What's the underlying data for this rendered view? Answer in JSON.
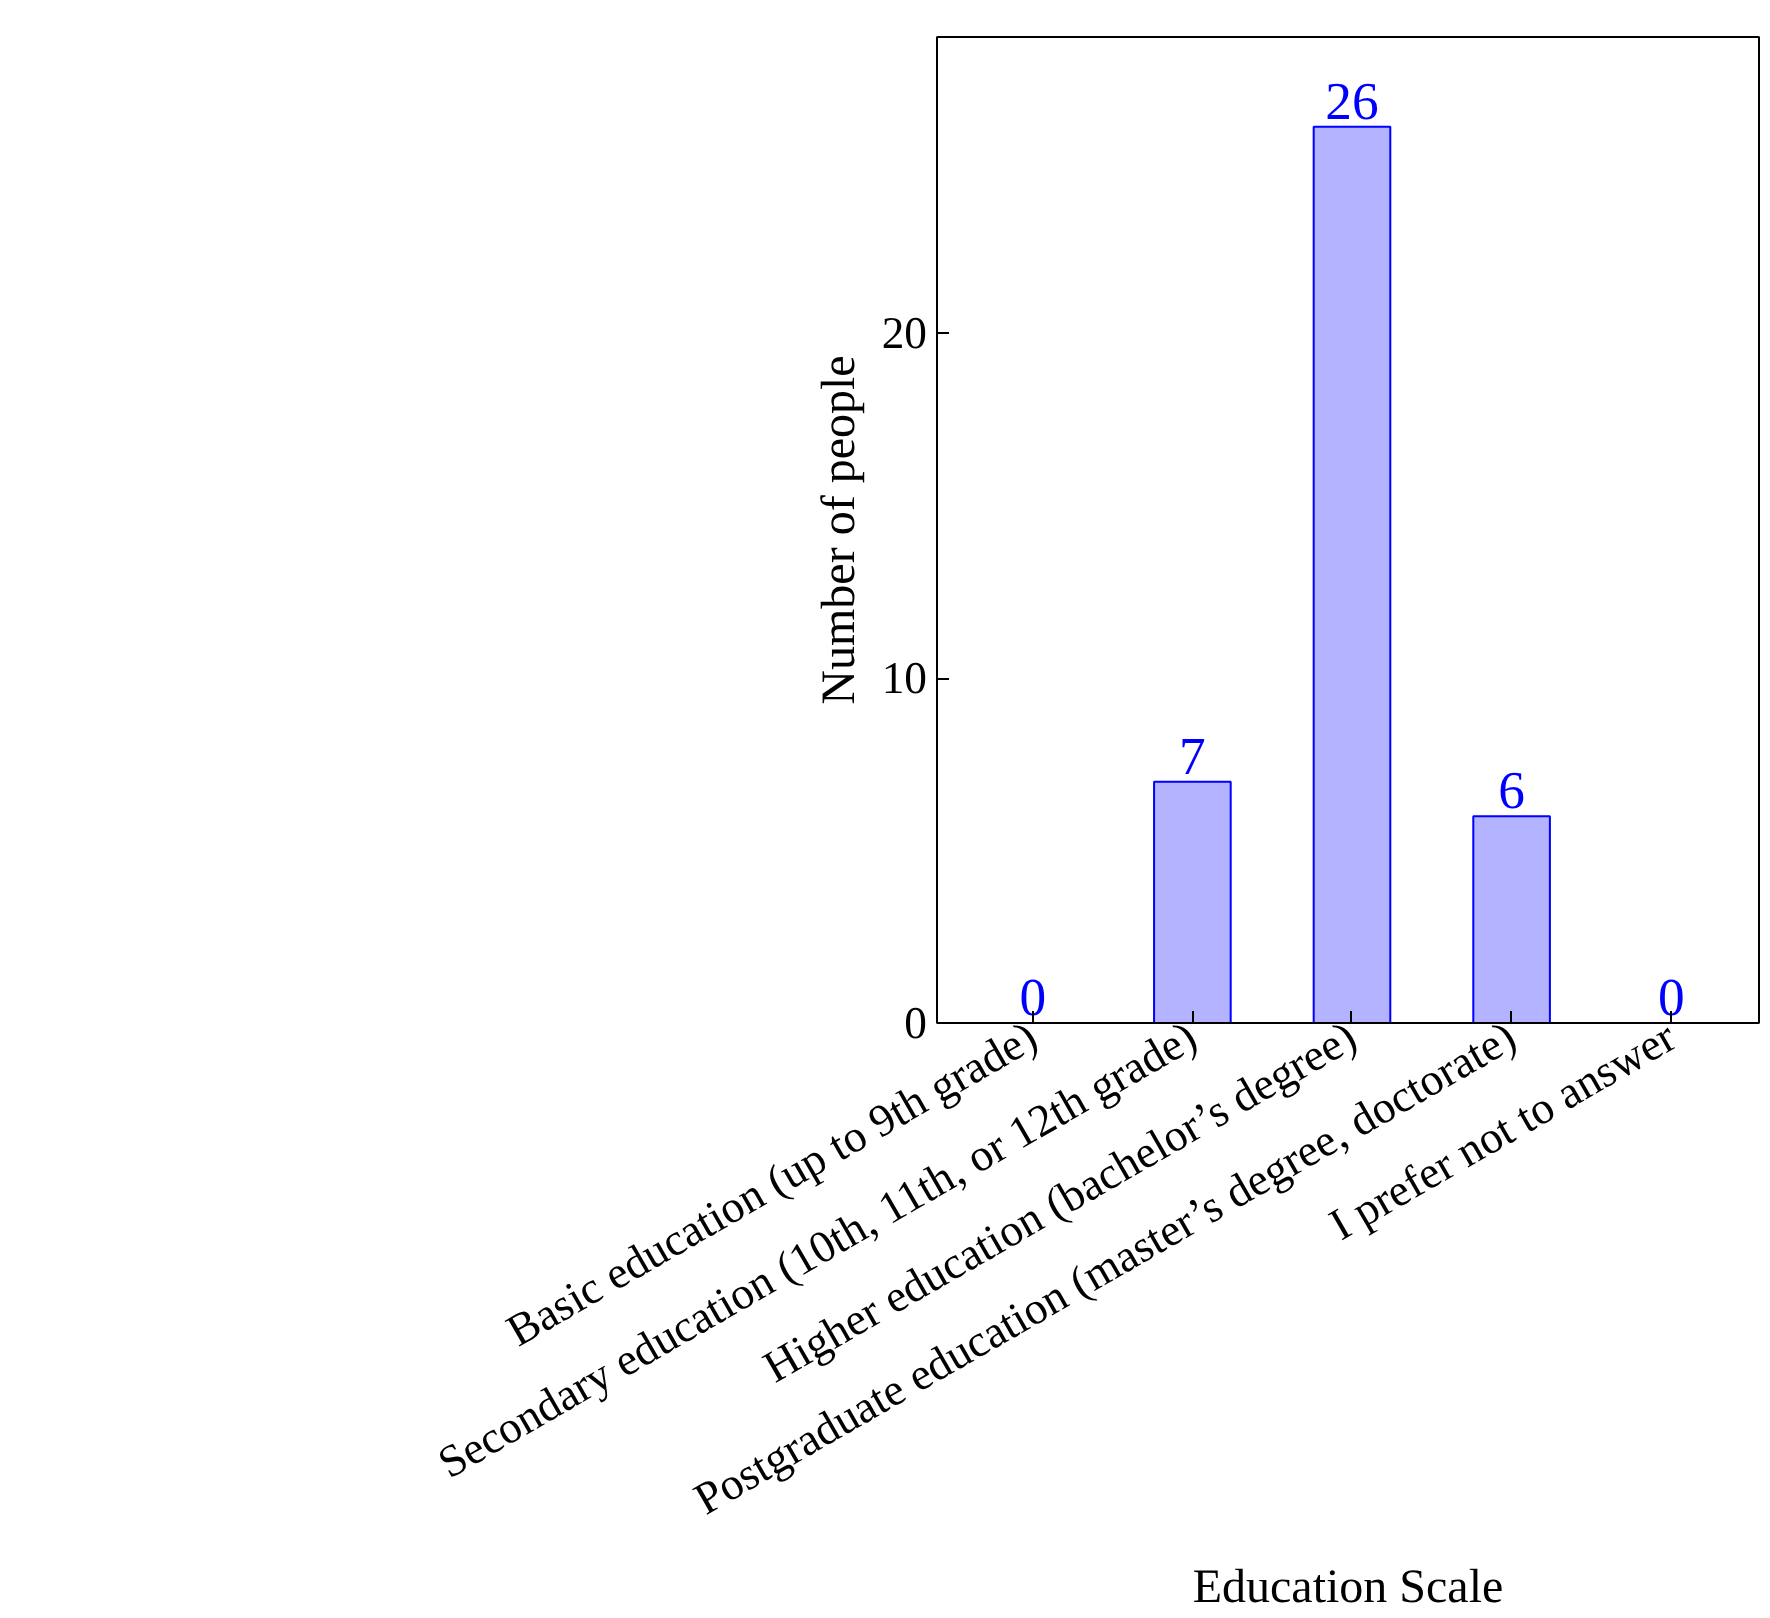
{
  "chart_data": {
    "type": "bar",
    "categories": [
      "Basic education (up to 9th grade)",
      "Secondary education (10th, 11th, or 12th grade)",
      "Higher education (bachelor’s degree)",
      "Postgraduate education (master’s degree, doctorate)",
      "I prefer not to answer"
    ],
    "values": [
      0,
      7,
      26,
      6,
      0
    ],
    "color": "#b3b3ff",
    "xlabel": "Education Scale",
    "ylabel": "Number of people",
    "ylim": [
      0,
      28.6
    ],
    "yticks": [
      0,
      10,
      20
    ],
    "data_labels": true,
    "grid": false
  }
}
